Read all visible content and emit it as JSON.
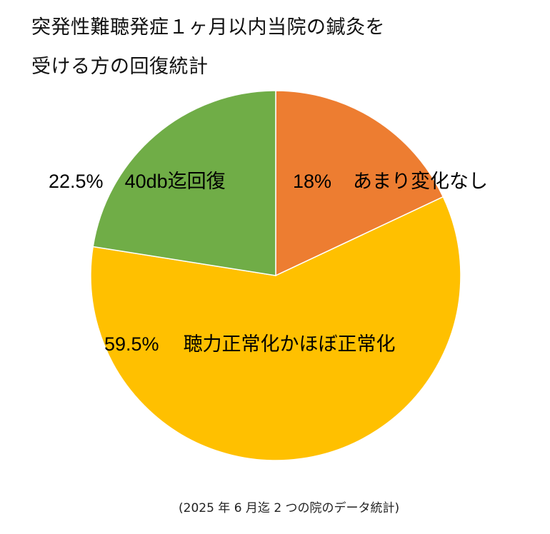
{
  "title": {
    "line1": "突発性難聴発症１ヶ月以内当院の鍼灸を",
    "line2": "受ける方の回復統計"
  },
  "labels": {
    "orange": {
      "pct": "18%",
      "text": "あまり変化なし"
    },
    "yellow": {
      "pct": "59.5%",
      "text": "聴力正常化かほぼ正常化"
    },
    "green": {
      "pct": "22.5%",
      "text": "40db迄回復"
    }
  },
  "footnote": "(2025 年 6 月迄 2 つの院のデータ統計)",
  "colors": {
    "orange": "#ED7D31",
    "yellow": "#FFC000",
    "green": "#70AD47"
  },
  "chart_data": {
    "type": "pie",
    "title": "突発性難聴発症１ヶ月以内当院の鍼灸を受ける方の回復統計",
    "categories": [
      "あまり変化なし",
      "聴力正常化かほぼ正常化",
      "40db迄回復"
    ],
    "values": [
      18,
      59.5,
      22.5
    ],
    "unit": "%",
    "colors": [
      "#ED7D31",
      "#FFC000",
      "#70AD47"
    ],
    "start_angle": "12 o'clock, clockwise",
    "legend": "none (labels inside slices)",
    "note": "(2025 年 6 月迄 2 つの院のデータ統計)"
  }
}
